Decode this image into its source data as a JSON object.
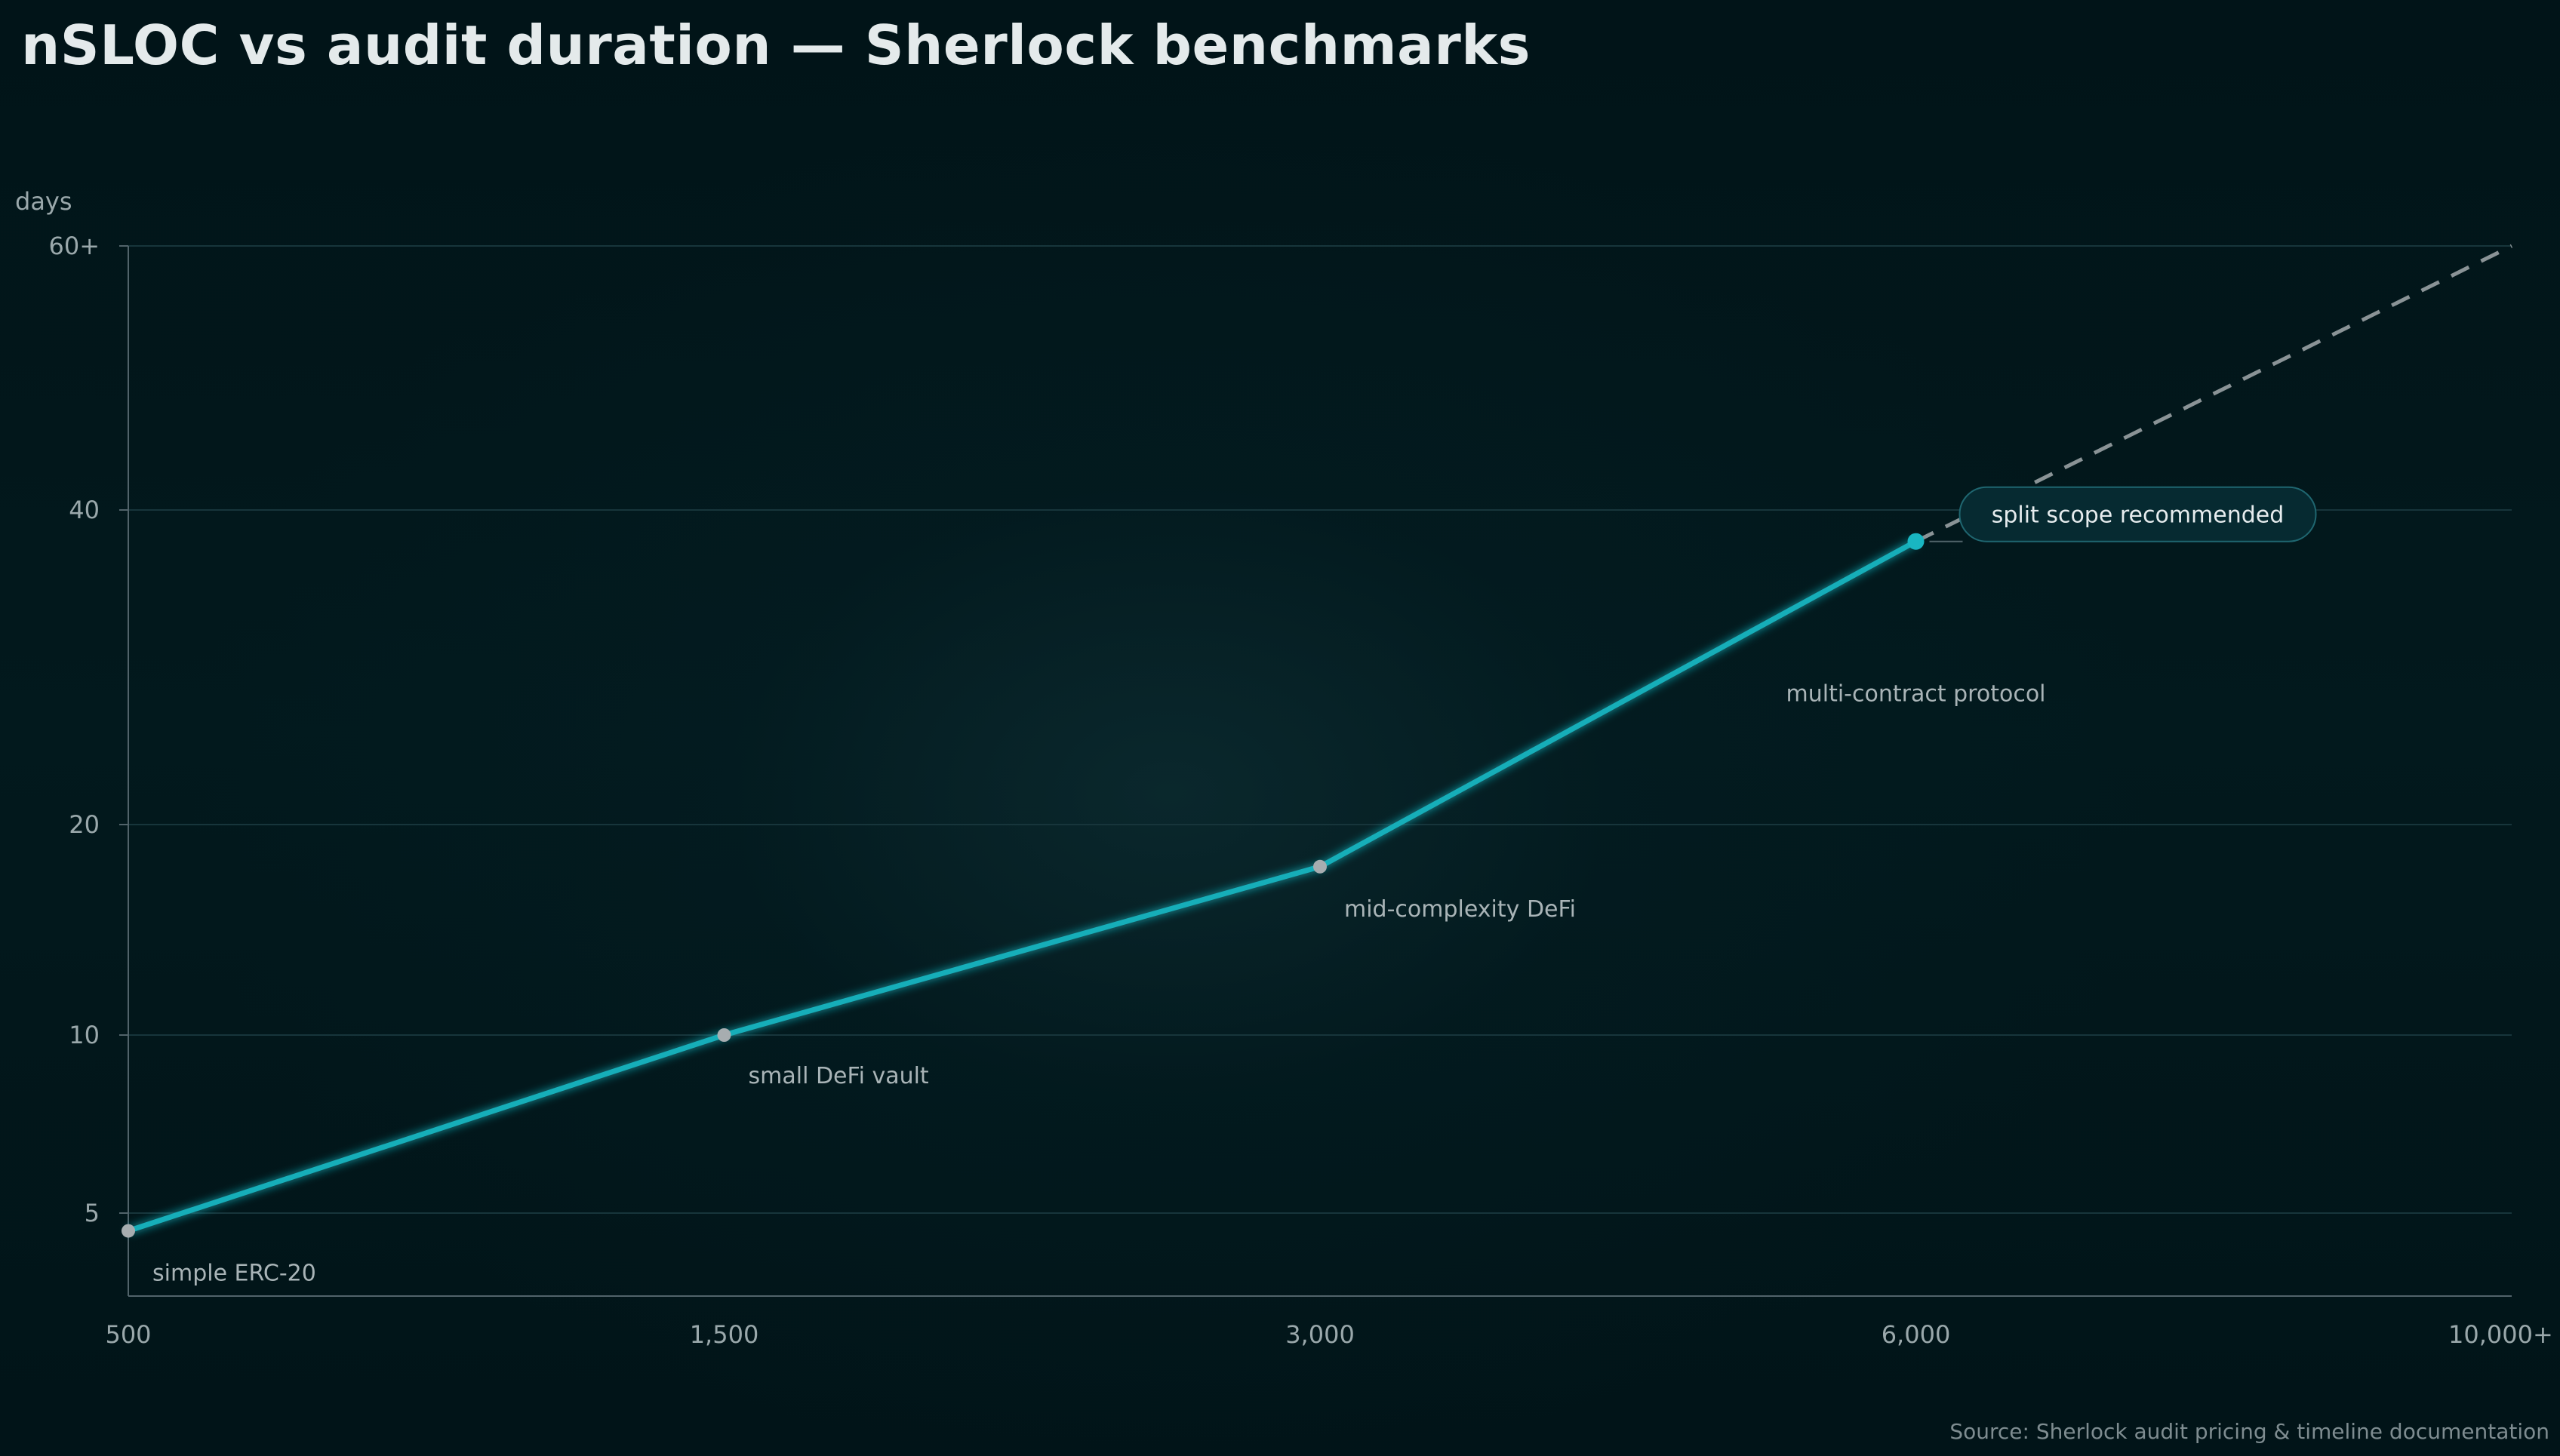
{
  "chart_data": {
    "type": "line",
    "title": "nSLOC vs audit duration — Sherlock benchmarks",
    "ylabel": "days",
    "xlabel": "",
    "source": "Source: Sherlock audit pricing & timeline documentation",
    "x_ticks": [
      {
        "value": 500,
        "label": "500"
      },
      {
        "value": 1500,
        "label": "1,500"
      },
      {
        "value": 3000,
        "label": "3,000"
      },
      {
        "value": 6000,
        "label": "6,000"
      },
      {
        "value": 10000,
        "label": "10,000+"
      }
    ],
    "y_ticks": [
      {
        "value": 5,
        "label": "5"
      },
      {
        "value": 10,
        "label": "10"
      },
      {
        "value": 20,
        "label": "20"
      },
      {
        "value": 40,
        "label": "40"
      },
      {
        "value": 60,
        "label": "60+"
      }
    ],
    "series": [
      {
        "points": [
          {
            "x": 500,
            "y": 4.5,
            "label": "simple ERC-20"
          },
          {
            "x": 1500,
            "y": 10,
            "label": "small DeFi vault"
          },
          {
            "x": 3000,
            "y": 18,
            "label": "mid-complexity DeFi"
          },
          {
            "x": 6000,
            "y": 38,
            "label": "multi-contract protocol"
          }
        ]
      }
    ],
    "extrapolation": {
      "from": {
        "x": 6000,
        "y": 38
      },
      "to": {
        "x": 10000,
        "y": 60
      },
      "style": "dashed"
    },
    "callout": {
      "text": "split scope recommended",
      "x": 6000,
      "y": 38
    },
    "colors": {
      "line": "#17aeb9",
      "marker": "#a7adb0",
      "highlight": "#19b6c2",
      "dashed": "#8a9396",
      "grid": "#17353b",
      "axis": "#51636a"
    },
    "grid": true
  }
}
